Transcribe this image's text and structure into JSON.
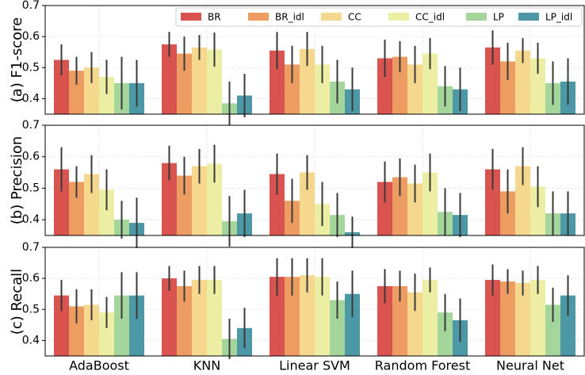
{
  "chart_data": [
    {
      "type": "bar",
      "ylabel": "(a) F1-score",
      "ylim": [
        0.35,
        0.7
      ],
      "yticks": [
        0.4,
        0.5,
        0.6,
        0.7
      ],
      "grid": true,
      "legend": "upper right",
      "series": [
        {
          "name": "BR",
          "color": "#d9534f",
          "values": [
            0.525,
            0.575,
            0.555,
            0.53,
            0.565
          ],
          "errors": [
            0.05,
            0.04,
            0.06,
            0.06,
            0.055
          ]
        },
        {
          "name": "BR_idl",
          "color": "#ee9d62",
          "values": [
            0.49,
            0.545,
            0.51,
            0.535,
            0.52
          ],
          "errors": [
            0.045,
            0.055,
            0.06,
            0.05,
            0.06
          ]
        },
        {
          "name": "CC",
          "color": "#f5d88e",
          "values": [
            0.5,
            0.565,
            0.56,
            0.51,
            0.555
          ],
          "errors": [
            0.05,
            0.04,
            0.055,
            0.06,
            0.04
          ]
        },
        {
          "name": "CC_idl",
          "color": "#ecefa3",
          "values": [
            0.47,
            0.558,
            0.51,
            0.545,
            0.53
          ],
          "errors": [
            0.055,
            0.055,
            0.06,
            0.05,
            0.05
          ]
        },
        {
          "name": "LP",
          "color": "#a4d59a",
          "values": [
            0.45,
            0.385,
            0.455,
            0.44,
            0.45
          ],
          "errors": [
            0.085,
            0.07,
            0.07,
            0.065,
            0.07
          ]
        },
        {
          "name": "LP_idl",
          "color": "#4c98a6",
          "values": [
            0.45,
            0.41,
            0.43,
            0.43,
            0.455
          ],
          "errors": [
            0.075,
            0.07,
            0.07,
            0.07,
            0.075
          ]
        }
      ]
    },
    {
      "type": "bar",
      "ylabel": "(b) Precision",
      "ylim": [
        0.35,
        0.7
      ],
      "yticks": [
        0.4,
        0.5,
        0.6,
        0.7
      ],
      "grid": true,
      "series": [
        {
          "color": "#d9534f",
          "values": [
            0.56,
            0.58,
            0.545,
            0.52,
            0.56
          ],
          "errors": [
            0.07,
            0.055,
            0.065,
            0.065,
            0.065
          ]
        },
        {
          "color": "#ee9d62",
          "values": [
            0.52,
            0.54,
            0.46,
            0.535,
            0.49
          ],
          "errors": [
            0.05,
            0.06,
            0.07,
            0.06,
            0.07
          ]
        },
        {
          "color": "#f5d88e",
          "values": [
            0.545,
            0.57,
            0.55,
            0.515,
            0.57
          ],
          "errors": [
            0.06,
            0.055,
            0.055,
            0.06,
            0.06
          ]
        },
        {
          "color": "#ecefa3",
          "values": [
            0.495,
            0.578,
            0.45,
            0.55,
            0.505
          ],
          "errors": [
            0.065,
            0.06,
            0.07,
            0.06,
            0.065
          ]
        },
        {
          "color": "#a4d59a",
          "values": [
            0.4,
            0.395,
            0.415,
            0.425,
            0.42
          ],
          "errors": [
            0.06,
            0.08,
            0.07,
            0.075,
            0.07
          ]
        },
        {
          "color": "#4c98a6",
          "values": [
            0.39,
            0.42,
            0.36,
            0.415,
            0.42
          ],
          "errors": [
            0.08,
            0.075,
            0.05,
            0.07,
            0.07
          ]
        }
      ]
    },
    {
      "type": "bar",
      "ylabel": "(c) Recall",
      "ylim": [
        0.35,
        0.7
      ],
      "yticks": [
        0.4,
        0.5,
        0.6,
        0.7
      ],
      "grid": true,
      "categories": [
        "AdaBoost",
        "KNN",
        "Linear SVM",
        "Random Forest",
        "Neural Net"
      ],
      "series": [
        {
          "color": "#d9534f",
          "values": [
            0.545,
            0.6,
            0.605,
            0.575,
            0.595
          ],
          "errors": [
            0.05,
            0.04,
            0.06,
            0.055,
            0.05
          ]
        },
        {
          "color": "#ee9d62",
          "values": [
            0.51,
            0.575,
            0.605,
            0.575,
            0.59
          ],
          "errors": [
            0.055,
            0.05,
            0.06,
            0.05,
            0.04
          ]
        },
        {
          "color": "#f5d88e",
          "values": [
            0.515,
            0.595,
            0.61,
            0.555,
            0.585
          ],
          "errors": [
            0.05,
            0.045,
            0.055,
            0.06,
            0.04
          ]
        },
        {
          "color": "#ecefa3",
          "values": [
            0.49,
            0.595,
            0.605,
            0.595,
            0.595
          ],
          "errors": [
            0.05,
            0.045,
            0.06,
            0.04,
            0.045
          ]
        },
        {
          "color": "#a4d59a",
          "values": [
            0.545,
            0.405,
            0.53,
            0.49,
            0.515
          ],
          "errors": [
            0.075,
            0.065,
            0.06,
            0.06,
            0.055
          ]
        },
        {
          "color": "#4c98a6",
          "values": [
            0.545,
            0.44,
            0.55,
            0.465,
            0.545
          ],
          "errors": [
            0.075,
            0.065,
            0.075,
            0.07,
            0.065
          ]
        }
      ]
    }
  ]
}
